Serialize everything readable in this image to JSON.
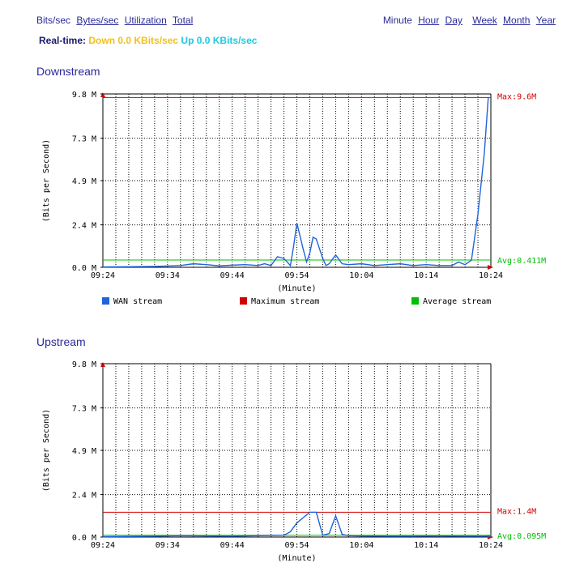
{
  "nav": {
    "units": [
      {
        "label": "Bits/sec",
        "underline": false
      },
      {
        "label": "Bytes/sec",
        "underline": true
      },
      {
        "label": "Utilization",
        "underline": true
      },
      {
        "label": "Total",
        "underline": true
      }
    ],
    "ranges": [
      {
        "label": "Minute",
        "underline": false
      },
      {
        "label": "Hour",
        "underline": true
      },
      {
        "label": "Day",
        "underline": true
      },
      {
        "label": "Week",
        "underline": true
      },
      {
        "label": "Month",
        "underline": true
      },
      {
        "label": "Year",
        "underline": true
      }
    ]
  },
  "realtime": {
    "label": "Real-time:",
    "down": "Down 0.0 KBits/sec",
    "up": "Up 0.0 KBits/sec"
  },
  "colors": {
    "wan": "#1e64dc",
    "max": "#d00000",
    "avg": "#00c000",
    "grid": "#000000"
  },
  "chart_data": [
    {
      "title": "Downstream",
      "type": "line",
      "ylabel": "(Bits per Second)",
      "xlabel": "(Minute)",
      "ylim": [
        0,
        9.8
      ],
      "yticks": [
        {
          "v": 0,
          "l": "0.0 M"
        },
        {
          "v": 2.4,
          "l": "2.4 M"
        },
        {
          "v": 4.9,
          "l": "4.9 M"
        },
        {
          "v": 7.3,
          "l": "7.3 M"
        },
        {
          "v": 9.8,
          "l": "9.8 M"
        }
      ],
      "xlim": [
        0,
        60
      ],
      "xticks": [
        {
          "v": 0,
          "l": "09:24"
        },
        {
          "v": 10,
          "l": "09:34"
        },
        {
          "v": 20,
          "l": "09:44"
        },
        {
          "v": 30,
          "l": "09:54"
        },
        {
          "v": 40,
          "l": "10:04"
        },
        {
          "v": 50,
          "l": "10:14"
        },
        {
          "v": 60,
          "l": "10:24"
        }
      ],
      "max": 9.6,
      "max_label": "Max:9.6M",
      "avg": 0.411,
      "avg_label": "Avg:0.411M",
      "wan": {
        "x": [
          0,
          4,
          8,
          12,
          14,
          16,
          18,
          20,
          22,
          24,
          25,
          26,
          27,
          28,
          29,
          29.5,
          30,
          31,
          31.5,
          32,
          32.5,
          33,
          34,
          34.5,
          35,
          36,
          37,
          38,
          40,
          42,
          44,
          46,
          48,
          50,
          52,
          54,
          55,
          56,
          57,
          58,
          59,
          59.6
        ],
        "y": [
          0.02,
          0.03,
          0.05,
          0.1,
          0.2,
          0.15,
          0.08,
          0.12,
          0.15,
          0.1,
          0.2,
          0.1,
          0.6,
          0.5,
          0.1,
          1.2,
          2.5,
          1.0,
          0.3,
          0.8,
          1.7,
          1.6,
          0.5,
          0.1,
          0.2,
          0.7,
          0.2,
          0.15,
          0.2,
          0.1,
          0.15,
          0.2,
          0.1,
          0.15,
          0.1,
          0.1,
          0.3,
          0.15,
          0.4,
          3.0,
          6.5,
          9.6
        ]
      },
      "legend": [
        "WAN stream",
        "Maximum stream",
        "Average stream"
      ]
    },
    {
      "title": "Upstream",
      "type": "line",
      "ylabel": "(Bits per Second)",
      "xlabel": "(Minute)",
      "ylim": [
        0,
        9.8
      ],
      "yticks": [
        {
          "v": 0,
          "l": "0.0 M"
        },
        {
          "v": 2.4,
          "l": "2.4 M"
        },
        {
          "v": 4.9,
          "l": "4.9 M"
        },
        {
          "v": 7.3,
          "l": "7.3 M"
        },
        {
          "v": 9.8,
          "l": "9.8 M"
        }
      ],
      "xlim": [
        0,
        60
      ],
      "xticks": [
        {
          "v": 0,
          "l": "09:24"
        },
        {
          "v": 10,
          "l": "09:34"
        },
        {
          "v": 20,
          "l": "09:44"
        },
        {
          "v": 30,
          "l": "09:54"
        },
        {
          "v": 40,
          "l": "10:04"
        },
        {
          "v": 50,
          "l": "10:14"
        },
        {
          "v": 60,
          "l": "10:24"
        }
      ],
      "max": 1.4,
      "max_label": "Max:1.4M",
      "avg": 0.095,
      "avg_label": "Avg:0.095M",
      "wan": {
        "x": [
          0,
          8,
          12,
          16,
          20,
          24,
          28,
          29,
          30,
          31,
          32,
          32.5,
          33,
          34,
          35,
          36,
          37,
          38,
          40,
          44,
          48,
          52,
          56,
          60
        ],
        "y": [
          0.02,
          0.05,
          0.08,
          0.06,
          0.05,
          0.08,
          0.1,
          0.3,
          0.8,
          1.1,
          1.4,
          1.4,
          1.4,
          0.1,
          0.2,
          1.2,
          0.15,
          0.08,
          0.06,
          0.05,
          0.05,
          0.06,
          0.05,
          0.05
        ]
      }
    }
  ]
}
